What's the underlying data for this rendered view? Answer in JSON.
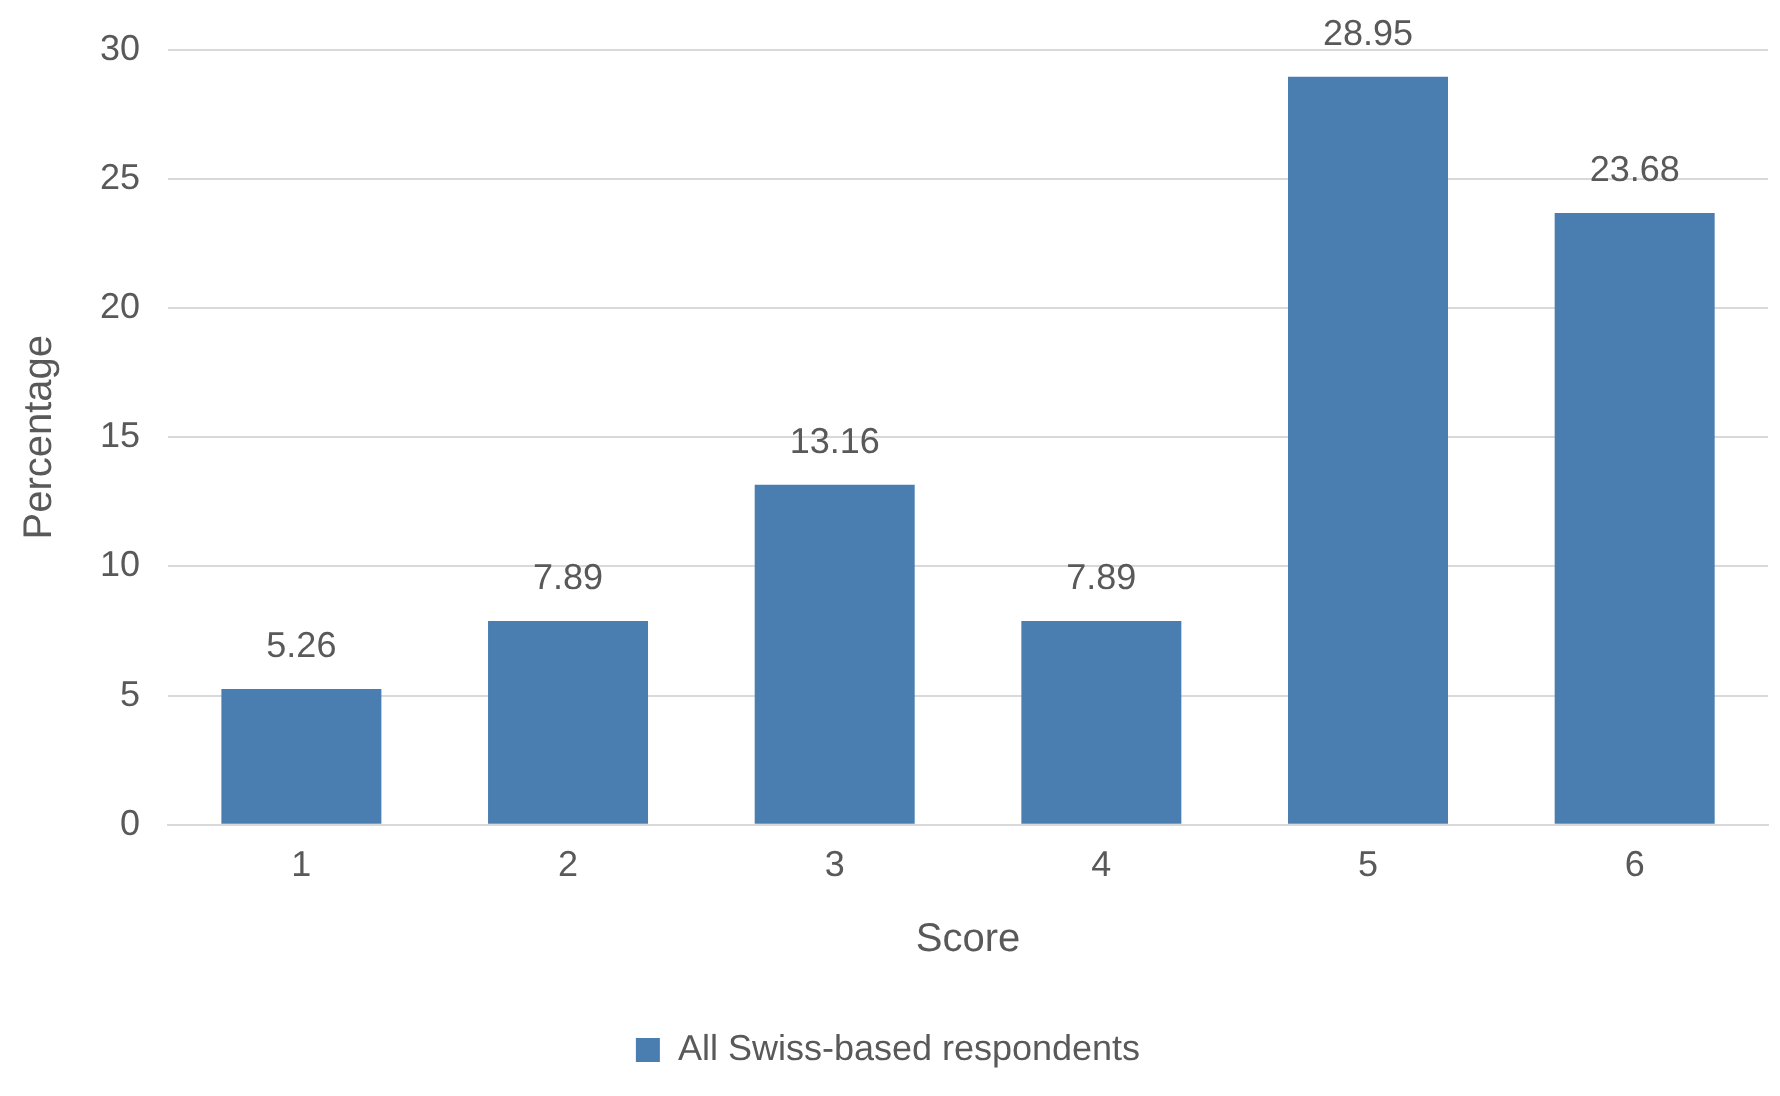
{
  "chart_data": {
    "type": "bar",
    "xlabel": "Score",
    "ylabel": "Percentage",
    "categories": [
      "1",
      "2",
      "3",
      "4",
      "5",
      "6"
    ],
    "series": [
      {
        "name": "All Swiss-based respondents",
        "color": "#4a7eb0",
        "values": [
          5.26,
          7.89,
          13.16,
          7.89,
          28.95,
          23.68
        ]
      }
    ],
    "ylim": [
      0,
      30
    ],
    "yticks": [
      0,
      5,
      10,
      15,
      20,
      25,
      30
    ],
    "grid": "y",
    "legend": "bottom",
    "data_labels": true
  }
}
